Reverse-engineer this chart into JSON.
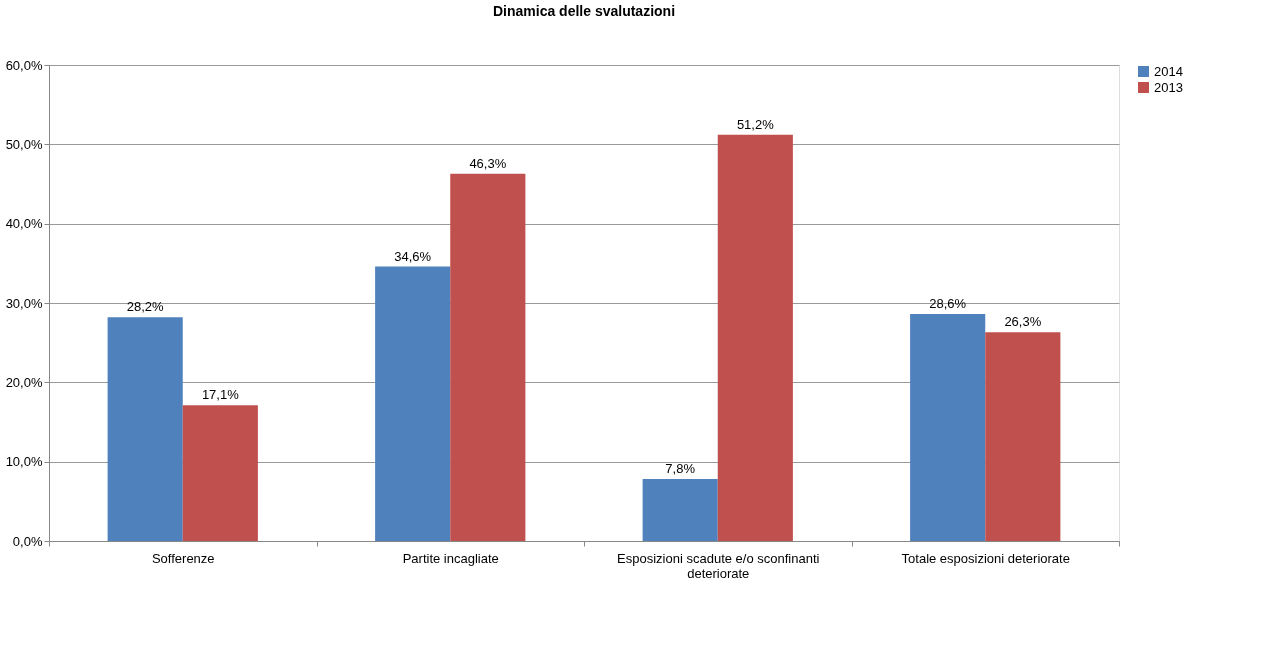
{
  "chart_data": {
    "type": "bar",
    "title": "Dinamica delle svalutazioni",
    "categories": [
      "Sofferenze",
      "Partite incagliate",
      "Esposizioni scadute e/o sconfinanti deteriorate",
      "Totale esposizioni deteriorate"
    ],
    "series": [
      {
        "name": "2014",
        "color": "#4f81bd",
        "values": [
          28.2,
          34.6,
          7.8,
          28.6
        ],
        "value_labels": [
          "28,2%",
          "34,6%",
          "7,8%",
          "28,6%"
        ]
      },
      {
        "name": "2013",
        "color": "#c0504d",
        "values": [
          17.1,
          46.3,
          51.2,
          26.3
        ],
        "value_labels": [
          "17,1%",
          "46,3%",
          "51,2%",
          "26,3%"
        ]
      }
    ],
    "ylim": [
      0,
      60
    ],
    "yticks": [
      {
        "value": 0,
        "label": "0,0%"
      },
      {
        "value": 10,
        "label": "10,0%"
      },
      {
        "value": 20,
        "label": "20,0%"
      },
      {
        "value": 30,
        "label": "30,0%"
      },
      {
        "value": 40,
        "label": "40,0%"
      },
      {
        "value": 50,
        "label": "50,0%"
      },
      {
        "value": 60,
        "label": "60,0%"
      }
    ],
    "grid": "y",
    "legend": "right"
  }
}
